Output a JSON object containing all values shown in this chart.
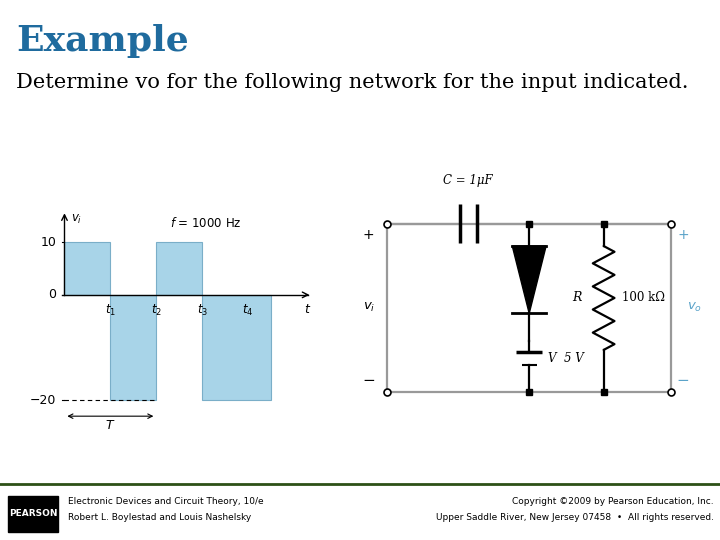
{
  "title": "Example",
  "title_color": "#1F6B9E",
  "title_fontsize": 26,
  "subtitle": "Determine vo for the following network for the input indicated.",
  "subtitle_fontsize": 15,
  "bg_color": "#FFFFFF",
  "footer_line_color": "#2D5016",
  "footer_bg_color": "#000000",
  "footer_text_left1": "Electronic Devices and Circuit Theory, 10/e",
  "footer_text_left2": "Robert L. Boylestad and Louis Nashelsky",
  "footer_text_right1": "Copyright ©2009 by Pearson Education, Inc.",
  "footer_text_right2": "Upper Saddle River, New Jersey 07458  •  All rights reserved.",
  "waveform_freq": "f = 1000 Hz",
  "waveform_bar_color": "#A8D4E8",
  "waveform_bar_edge": "#7AAEC8",
  "circuit_cap_label": "C = 1μF",
  "circuit_r_label": "R",
  "circuit_r_val": "100 kΩ",
  "circuit_v_label": "V",
  "circuit_v_val": "5 V",
  "circuit_line_color": "#999999",
  "circuit_plus_color": "#5BA3C9",
  "circuit_minus_color": "#5BA3C9"
}
